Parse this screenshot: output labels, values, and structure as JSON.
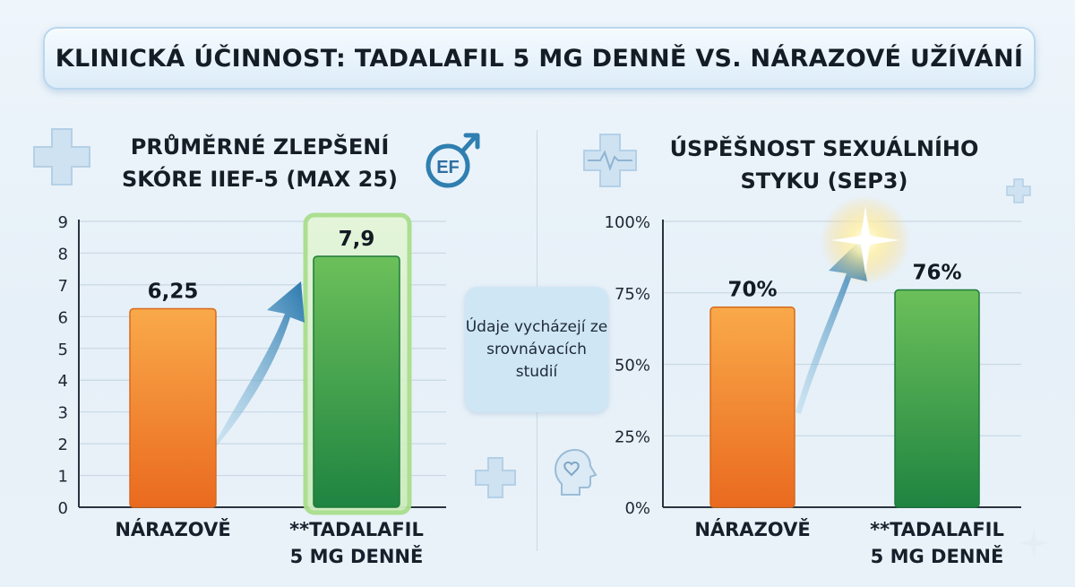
{
  "title": "KLINICKÁ ÚČINNOST: TADALAFIL 5 MG DENNĚ VS. NÁRAZOVÉ UŽÍVÁNÍ",
  "note": "Údaje vycházejí ze srovnávacích studií",
  "badge_text": "EF",
  "colors": {
    "orange": "#f08a2a",
    "green": "#2e9a47",
    "accent_blue": "#2f7fb0"
  },
  "chart_data": [
    {
      "type": "bar",
      "title": "PRŮMĚRNÉ ZLEPŠENÍ SKÓRE IIEF-5 (MAX 25)",
      "categories": [
        "NÁRAZOVĚ",
        "**TADALAFIL 5 MG DENNĚ"
      ],
      "values": [
        6.25,
        7.9
      ],
      "data_labels": [
        "6,25",
        "7,9"
      ],
      "ylim": [
        0,
        9
      ],
      "yticks": [
        "0",
        "1",
        "2",
        "3",
        "4",
        "5",
        "6",
        "7",
        "8",
        "9"
      ],
      "grid": true,
      "highlight": "**TADALAFIL 5 MG DENNĚ"
    },
    {
      "type": "bar",
      "title": "ÚSPĚŠNOST SEXUÁLNÍHO STYKU (SEP3)",
      "categories": [
        "NÁRAZOVĚ",
        "**TADALAFIL 5 MG DENNĚ"
      ],
      "values": [
        70,
        76
      ],
      "data_labels": [
        "70%",
        "76%"
      ],
      "ylim": [
        0,
        100
      ],
      "yticks": [
        "0%",
        "25%",
        "50%",
        "75%",
        "100%"
      ],
      "grid": true
    }
  ]
}
